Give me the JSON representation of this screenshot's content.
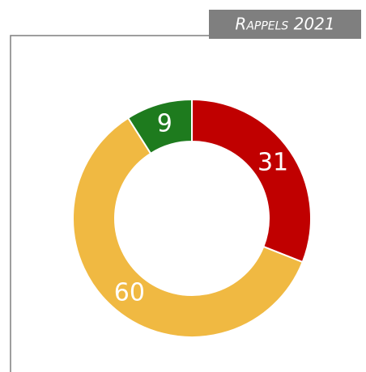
{
  "chart_data": {
    "type": "pie",
    "donut": true,
    "title": "Rappels 2021",
    "values": [
      31,
      60,
      9
    ],
    "colors": [
      "#c00000",
      "#f0b942",
      "#1e7b1e"
    ]
  }
}
